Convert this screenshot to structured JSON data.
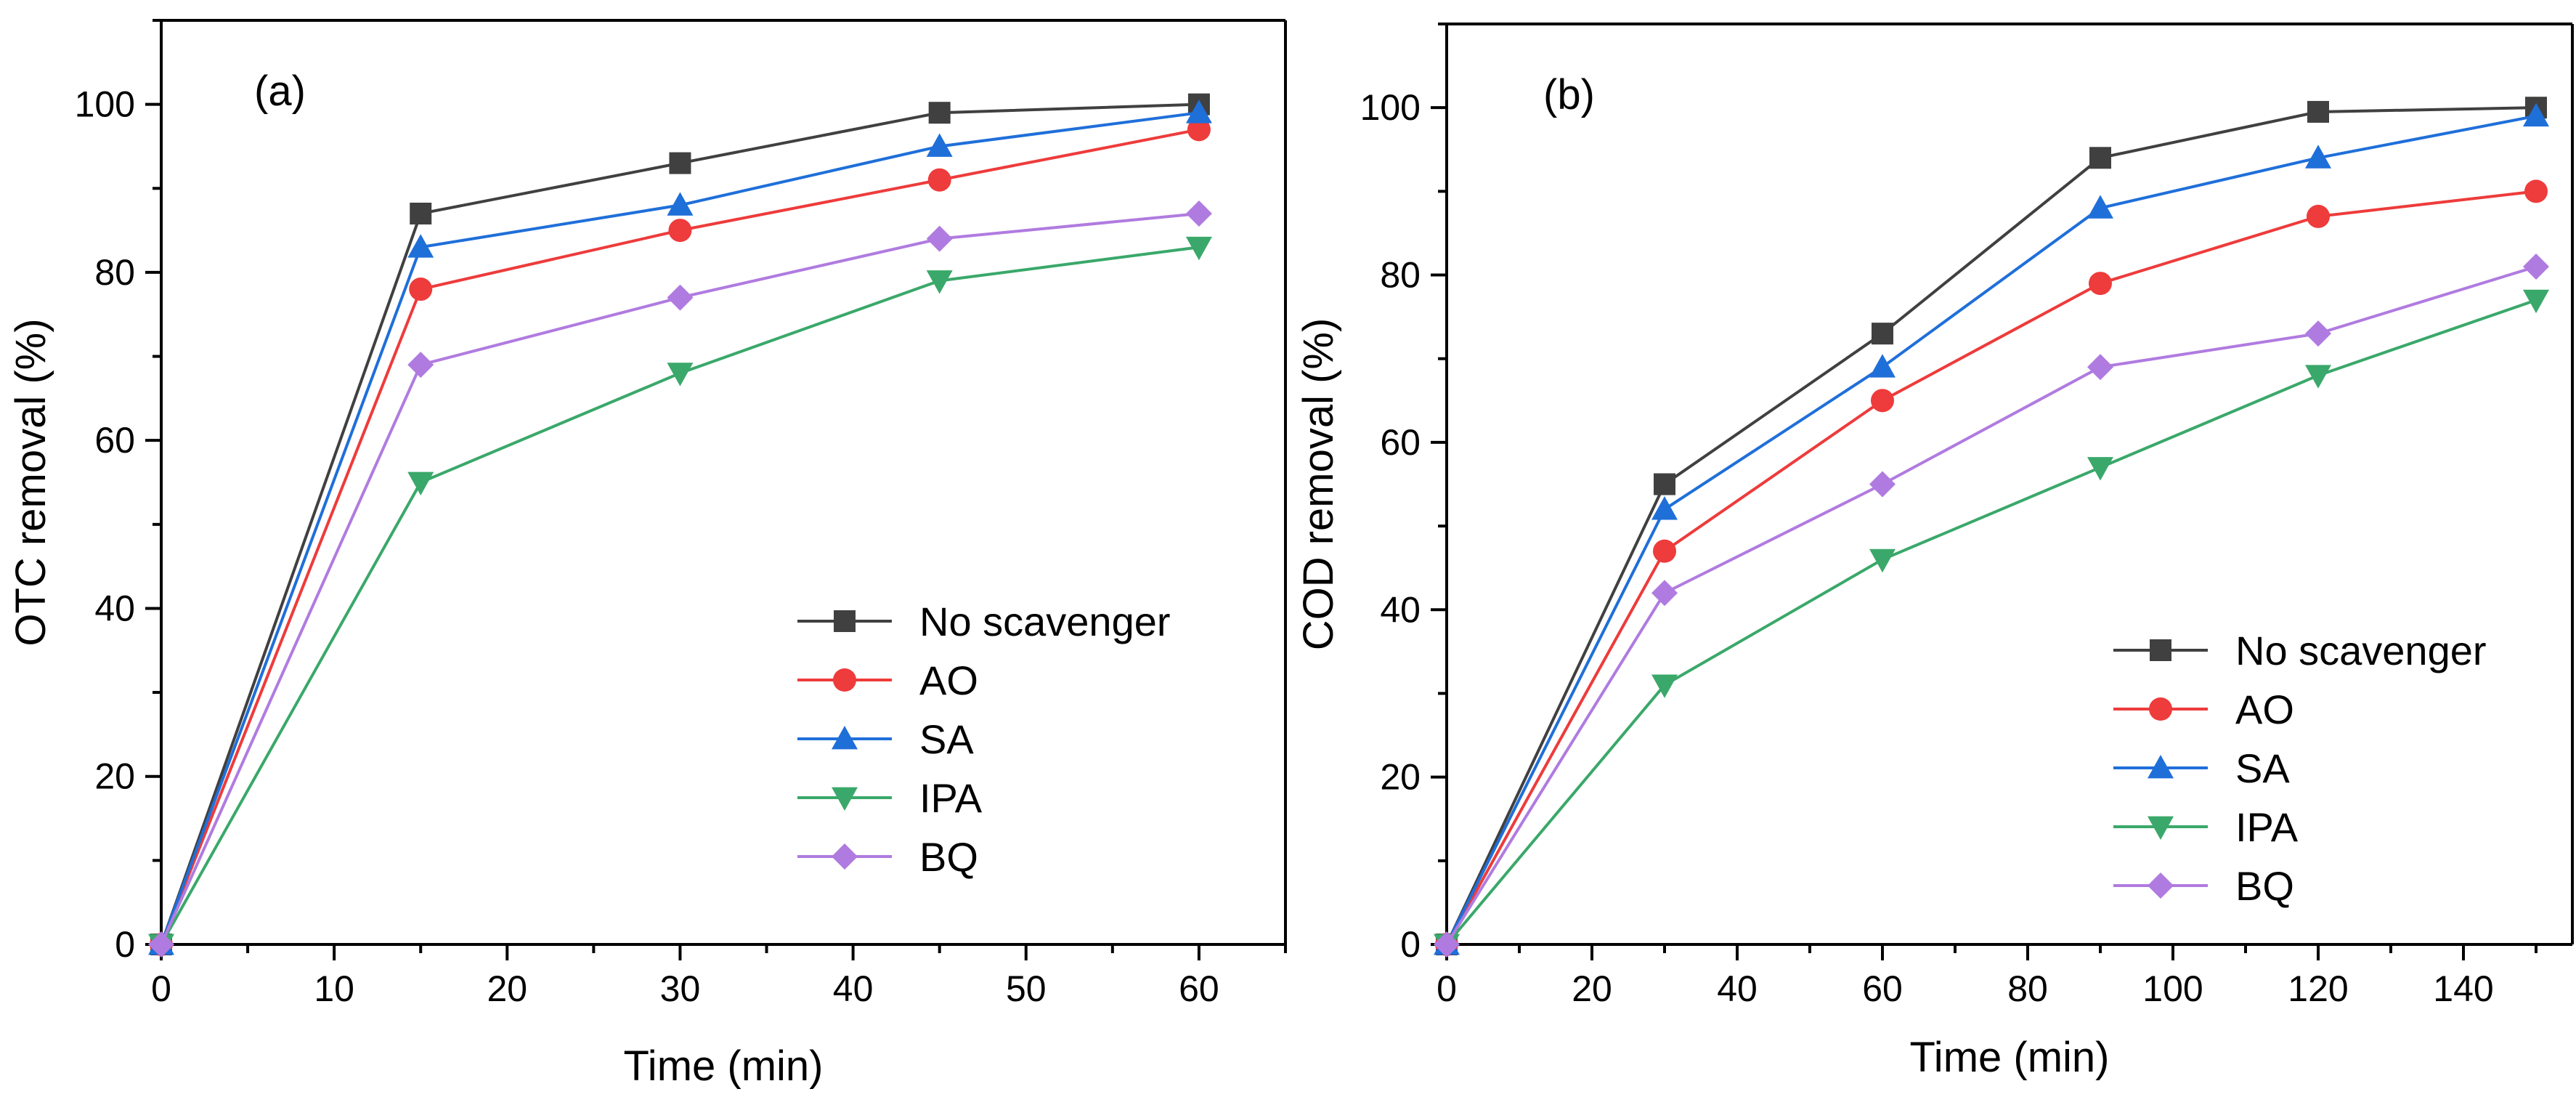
{
  "series_styles": [
    {
      "name": "No scavenger",
      "color": "#404040",
      "marker": "square"
    },
    {
      "name": "AO",
      "color": "#ee3b3b",
      "marker": "circle"
    },
    {
      "name": "SA",
      "color": "#1f6fd9",
      "marker": "triangle-up"
    },
    {
      "name": "IPA",
      "color": "#3aa86a",
      "marker": "triangle-down"
    },
    {
      "name": "BQ",
      "color": "#b07be0",
      "marker": "diamond"
    }
  ],
  "chart_data": [
    {
      "type": "line",
      "panel_label": "(a)",
      "title": "",
      "xlabel": "Time (min)",
      "ylabel": "OTC removal (%)",
      "xlim": [
        0,
        65
      ],
      "ylim": [
        0,
        110
      ],
      "xticks": [
        0,
        10,
        20,
        30,
        40,
        50,
        60
      ],
      "yticks": [
        0,
        20,
        40,
        60,
        80,
        100
      ],
      "x": [
        0,
        15,
        30,
        45,
        60
      ],
      "legend_position": "bottom-right",
      "grid": false,
      "series": [
        {
          "name": "No scavenger",
          "values": [
            0,
            87,
            93,
            99,
            100
          ]
        },
        {
          "name": "AO",
          "values": [
            0,
            78,
            85,
            91,
            97
          ]
        },
        {
          "name": "SA",
          "values": [
            0,
            83,
            88,
            95,
            99
          ]
        },
        {
          "name": "IPA",
          "values": [
            0,
            55,
            68,
            79,
            83
          ]
        },
        {
          "name": "BQ",
          "values": [
            0,
            69,
            77,
            84,
            87
          ]
        }
      ]
    },
    {
      "type": "line",
      "panel_label": "(b)",
      "title": "",
      "xlabel": "Time (min)",
      "ylabel": "COD removal (%)",
      "xlim": [
        0,
        155
      ],
      "ylim": [
        0,
        110
      ],
      "xticks": [
        0,
        20,
        40,
        60,
        80,
        100,
        120,
        140
      ],
      "yticks": [
        0,
        20,
        40,
        60,
        80,
        100
      ],
      "x": [
        0,
        30,
        60,
        90,
        120,
        150
      ],
      "legend_position": "bottom-right",
      "grid": false,
      "series": [
        {
          "name": "No scavenger",
          "values": [
            0,
            55,
            73,
            94,
            99.5,
            100
          ]
        },
        {
          "name": "AO",
          "values": [
            0,
            47,
            65,
            79,
            87,
            90
          ]
        },
        {
          "name": "SA",
          "values": [
            0,
            52,
            69,
            88,
            94,
            99
          ]
        },
        {
          "name": "IPA",
          "values": [
            0,
            31,
            46,
            57,
            68,
            77
          ]
        },
        {
          "name": "BQ",
          "values": [
            0,
            42,
            55,
            69,
            73,
            81
          ]
        }
      ]
    }
  ]
}
